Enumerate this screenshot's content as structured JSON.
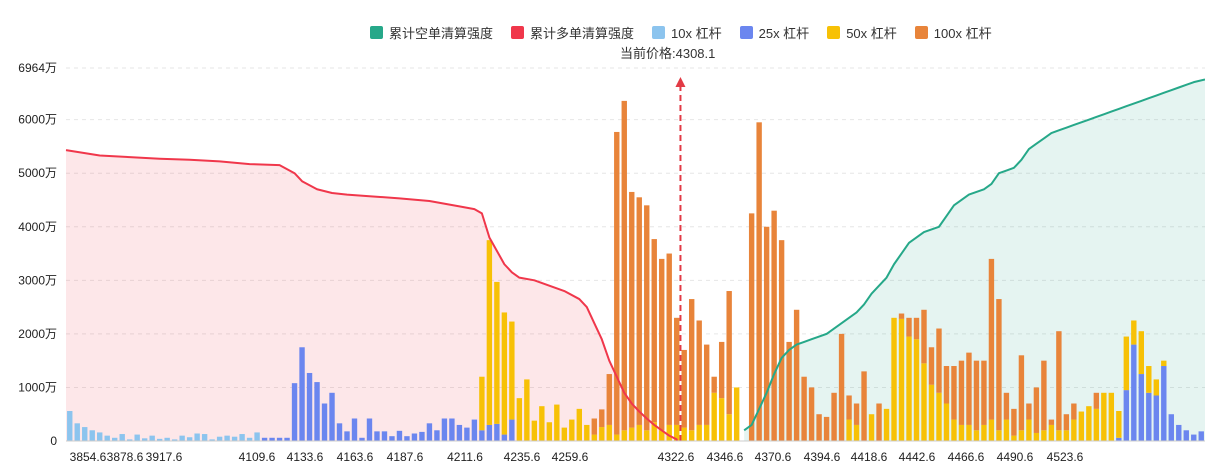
{
  "legend": {
    "items": [
      {
        "label": "累计空单清算强度",
        "color": "#26a889",
        "icon": "square"
      },
      {
        "label": "累计多单清算强度",
        "color": "#f0374b",
        "icon": "square"
      },
      {
        "label": "10x 杠杆",
        "color": "#8cc4ee",
        "icon": "square"
      },
      {
        "label": "25x 杠杆",
        "color": "#6b86ef",
        "icon": "square"
      },
      {
        "label": "50x 杠杆",
        "color": "#f7c106",
        "icon": "square"
      },
      {
        "label": "100x 杠杆",
        "color": "#e8843a",
        "icon": "square"
      }
    ]
  },
  "current_price": {
    "label": "当前价格:4308.1",
    "value": 4308.1
  },
  "chart_data": {
    "type": "bar",
    "title": "",
    "xlabel": "",
    "ylabel": "",
    "ylim": [
      0,
      6964
    ],
    "y_unit": "万",
    "y_ticks": [
      "0",
      "1000万",
      "2000万",
      "3000万",
      "4000万",
      "5000万",
      "6000万",
      "6964万"
    ],
    "y_tick_values": [
      0,
      1000,
      2000,
      3000,
      4000,
      5000,
      6000,
      6964
    ],
    "x_ticks": [
      "3854.6",
      "3878.6",
      "3917.6",
      "4109.6",
      "4133.6",
      "4163.6",
      "4187.6",
      "4211.6",
      "4235.6",
      "4259.6",
      "4322.6",
      "4346.6",
      "4370.6",
      "4394.6",
      "4418.6",
      "4442.6",
      "4466.6",
      "4490.6",
      "4523.6"
    ],
    "grid": true,
    "legend_position": "top",
    "bar_slots": 152,
    "current_price_index": 81,
    "colors": {
      "10x": "#8cc4ee",
      "25x": "#6b86ef",
      "50x": "#f7c106",
      "100x": "#e8843a",
      "short": "#26a889",
      "long": "#f0374b"
    },
    "bars": [
      {
        "i": 0,
        "l10": 560
      },
      {
        "i": 1,
        "l10": 330
      },
      {
        "i": 2,
        "l10": 260
      },
      {
        "i": 3,
        "l10": 200
      },
      {
        "i": 4,
        "l10": 160
      },
      {
        "i": 5,
        "l10": 100
      },
      {
        "i": 6,
        "l10": 60
      },
      {
        "i": 7,
        "l10": 130
      },
      {
        "i": 8,
        "l10": 30
      },
      {
        "i": 9,
        "l10": 120
      },
      {
        "i": 10,
        "l10": 50
      },
      {
        "i": 11,
        "l10": 100
      },
      {
        "i": 12,
        "l10": 40
      },
      {
        "i": 13,
        "l10": 60
      },
      {
        "i": 14,
        "l10": 30
      },
      {
        "i": 15,
        "l10": 100
      },
      {
        "i": 16,
        "l10": 70
      },
      {
        "i": 17,
        "l10": 140
      },
      {
        "i": 18,
        "l10": 130
      },
      {
        "i": 19,
        "l10": 30
      },
      {
        "i": 20,
        "l10": 80
      },
      {
        "i": 21,
        "l10": 100
      },
      {
        "i": 22,
        "l10": 80
      },
      {
        "i": 23,
        "l10": 130
      },
      {
        "i": 24,
        "l10": 60
      },
      {
        "i": 25,
        "l10": 160
      },
      {
        "i": 26,
        "l25": 60
      },
      {
        "i": 27,
        "l25": 60
      },
      {
        "i": 28,
        "l25": 60
      },
      {
        "i": 29,
        "l25": 60
      },
      {
        "i": 30,
        "l25": 1080
      },
      {
        "i": 31,
        "l25": 1750
      },
      {
        "i": 32,
        "l25": 1270
      },
      {
        "i": 33,
        "l25": 1100
      },
      {
        "i": 34,
        "l25": 700
      },
      {
        "i": 35,
        "l25": 900
      },
      {
        "i": 36,
        "l25": 330
      },
      {
        "i": 37,
        "l25": 180
      },
      {
        "i": 38,
        "l25": 420
      },
      {
        "i": 39,
        "l25": 60
      },
      {
        "i": 40,
        "l25": 420
      },
      {
        "i": 41,
        "l25": 180
      },
      {
        "i": 42,
        "l25": 180
      },
      {
        "i": 43,
        "l25": 90
      },
      {
        "i": 44,
        "l25": 190
      },
      {
        "i": 45,
        "l25": 90
      },
      {
        "i": 46,
        "l25": 140
      },
      {
        "i": 47,
        "l25": 170
      },
      {
        "i": 48,
        "l25": 330
      },
      {
        "i": 49,
        "l25": 200
      },
      {
        "i": 50,
        "l25": 420
      },
      {
        "i": 51,
        "l25": 420
      },
      {
        "i": 52,
        "l25": 300
      },
      {
        "i": 53,
        "l25": 250
      },
      {
        "i": 54,
        "l25": 400
      },
      {
        "i": 55,
        "l25": 200,
        "l50": 1000
      },
      {
        "i": 56,
        "l25": 300,
        "l50": 3450
      },
      {
        "i": 57,
        "l25": 320,
        "l50": 2650
      },
      {
        "i": 58,
        "l25": 120,
        "l50": 2280
      },
      {
        "i": 59,
        "l25": 400,
        "l50": 1830
      },
      {
        "i": 60,
        "l50": 800
      },
      {
        "i": 61,
        "l50": 1150
      },
      {
        "i": 62,
        "l50": 380
      },
      {
        "i": 63,
        "l50": 650
      },
      {
        "i": 64,
        "l50": 350
      },
      {
        "i": 65,
        "l50": 680
      },
      {
        "i": 66,
        "l50": 250
      },
      {
        "i": 67,
        "l50": 400
      },
      {
        "i": 68,
        "l50": 600
      },
      {
        "i": 69,
        "l50": 300
      },
      {
        "i": 70,
        "l50": 120,
        "l100": 300
      },
      {
        "i": 71,
        "l50": 260,
        "l100": 330
      },
      {
        "i": 72,
        "l50": 300,
        "l100": 950
      },
      {
        "i": 73,
        "l50": 120,
        "l100": 5650
      },
      {
        "i": 74,
        "l50": 200,
        "l100": 6150
      },
      {
        "i": 75,
        "l50": 250,
        "l100": 4400
      },
      {
        "i": 76,
        "l50": 300,
        "l100": 4250
      },
      {
        "i": 77,
        "l50": 200,
        "l100": 4200
      },
      {
        "i": 78,
        "l50": 350,
        "l100": 3420
      },
      {
        "i": 79,
        "l50": 200,
        "l100": 3200
      },
      {
        "i": 80,
        "l50": 300,
        "l100": 3200
      },
      {
        "i": 81,
        "l50": 300,
        "l100": 2000
      },
      {
        "i": 82,
        "l50": 250,
        "l100": 1450
      },
      {
        "i": 83,
        "l50": 200,
        "l100": 2450
      },
      {
        "i": 84,
        "l50": 300,
        "l100": 1950
      },
      {
        "i": 85,
        "l50": 300,
        "l100": 1500
      },
      {
        "i": 86,
        "l50": 900,
        "l100": 300
      },
      {
        "i": 87,
        "l50": 800,
        "l100": 1050
      },
      {
        "i": 88,
        "l50": 500,
        "l100": 2300
      },
      {
        "i": 89,
        "l50": 1000
      },
      {
        "i": 91,
        "l100": 4250
      },
      {
        "i": 92,
        "l100": 5950
      },
      {
        "i": 93,
        "l100": 4000
      },
      {
        "i": 94,
        "l100": 4300
      },
      {
        "i": 95,
        "l100": 3750
      },
      {
        "i": 96,
        "l100": 1850
      },
      {
        "i": 97,
        "l100": 2450
      },
      {
        "i": 98,
        "l100": 1200
      },
      {
        "i": 99,
        "l100": 1000
      },
      {
        "i": 100,
        "l100": 500
      },
      {
        "i": 101,
        "l100": 450
      },
      {
        "i": 102,
        "l100": 900
      },
      {
        "i": 103,
        "l100": 2000
      },
      {
        "i": 104,
        "l50": 400,
        "l100": 450
      },
      {
        "i": 105,
        "l50": 300,
        "l100": 400
      },
      {
        "i": 106,
        "l100": 1300
      },
      {
        "i": 107,
        "l50": 500
      },
      {
        "i": 108,
        "l100": 700
      },
      {
        "i": 109,
        "l50": 600
      },
      {
        "i": 110,
        "l50": 2300
      },
      {
        "i": 111,
        "l50": 2280,
        "l100": 100
      },
      {
        "i": 112,
        "l50": 1950,
        "l100": 350
      },
      {
        "i": 113,
        "l50": 1900,
        "l100": 400
      },
      {
        "i": 114,
        "l50": 1450,
        "l100": 1000
      },
      {
        "i": 115,
        "l50": 1050,
        "l100": 700
      },
      {
        "i": 116,
        "l50": 900,
        "l100": 1200
      },
      {
        "i": 117,
        "l50": 700,
        "l100": 700
      },
      {
        "i": 118,
        "l50": 400,
        "l100": 1000
      },
      {
        "i": 119,
        "l50": 300,
        "l100": 1200
      },
      {
        "i": 120,
        "l50": 300,
        "l100": 1350
      },
      {
        "i": 121,
        "l50": 200,
        "l100": 1300
      },
      {
        "i": 122,
        "l50": 300,
        "l100": 1200
      },
      {
        "i": 123,
        "l50": 400,
        "l100": 3000
      },
      {
        "i": 124,
        "l50": 200,
        "l100": 2450
      },
      {
        "i": 125,
        "l50": 400,
        "l100": 500
      },
      {
        "i": 126,
        "l50": 100,
        "l100": 500
      },
      {
        "i": 127,
        "l50": 200,
        "l100": 1400
      },
      {
        "i": 128,
        "l50": 400,
        "l100": 300
      },
      {
        "i": 129,
        "l50": 150,
        "l100": 850
      },
      {
        "i": 130,
        "l50": 200,
        "l100": 1300
      },
      {
        "i": 131,
        "l50": 300,
        "l100": 100
      },
      {
        "i": 132,
        "l50": 200,
        "l100": 1850
      },
      {
        "i": 133,
        "l50": 200,
        "l100": 300
      },
      {
        "i": 134,
        "l50": 400,
        "l100": 300
      },
      {
        "i": 135,
        "l50": 550
      },
      {
        "i": 136,
        "l50": 650
      },
      {
        "i": 137,
        "l50": 600,
        "l100": 300
      },
      {
        "i": 138,
        "l50": 900
      },
      {
        "i": 139,
        "l50": 900
      },
      {
        "i": 140,
        "l25": 60,
        "l50": 500
      },
      {
        "i": 141,
        "l25": 950,
        "l50": 1000
      },
      {
        "i": 142,
        "l25": 1800,
        "l50": 450
      },
      {
        "i": 143,
        "l25": 1250,
        "l50": 800
      },
      {
        "i": 144,
        "l25": 900,
        "l50": 500
      },
      {
        "i": 145,
        "l25": 850,
        "l50": 300
      },
      {
        "i": 146,
        "l25": 1400,
        "l50": 100
      },
      {
        "i": 147,
        "l25": 500
      },
      {
        "i": 148,
        "l25": 300
      },
      {
        "i": 149,
        "l25": 200
      },
      {
        "i": 150,
        "l25": 120
      },
      {
        "i": 151,
        "l25": 180
      }
    ],
    "short_cumulative": [
      [
        90,
        200
      ],
      [
        91,
        300
      ],
      [
        92,
        600
      ],
      [
        93,
        900
      ],
      [
        94,
        1250
      ],
      [
        95,
        1550
      ],
      [
        96,
        1700
      ],
      [
        97,
        1800
      ],
      [
        98,
        1850
      ],
      [
        99,
        1900
      ],
      [
        100,
        1950
      ],
      [
        101,
        2000
      ],
      [
        102,
        2100
      ],
      [
        103,
        2200
      ],
      [
        104,
        2300
      ],
      [
        105,
        2400
      ],
      [
        106,
        2550
      ],
      [
        107,
        2750
      ],
      [
        108,
        2900
      ],
      [
        109,
        3050
      ],
      [
        110,
        3300
      ],
      [
        111,
        3500
      ],
      [
        112,
        3700
      ],
      [
        113,
        3800
      ],
      [
        114,
        3900
      ],
      [
        115,
        3950
      ],
      [
        116,
        4000
      ],
      [
        117,
        4200
      ],
      [
        118,
        4400
      ],
      [
        119,
        4500
      ],
      [
        120,
        4600
      ],
      [
        121,
        4650
      ],
      [
        122,
        4700
      ],
      [
        123,
        4800
      ],
      [
        124,
        5000
      ],
      [
        125,
        5050
      ],
      [
        126,
        5100
      ],
      [
        127,
        5250
      ],
      [
        128,
        5450
      ],
      [
        129,
        5550
      ],
      [
        130,
        5650
      ],
      [
        131,
        5750
      ],
      [
        132,
        5800
      ],
      [
        133,
        5850
      ],
      [
        134,
        5900
      ],
      [
        135,
        5950
      ],
      [
        136,
        6000
      ],
      [
        137,
        6050
      ],
      [
        138,
        6100
      ],
      [
        139,
        6150
      ],
      [
        140,
        6200
      ],
      [
        141,
        6250
      ],
      [
        142,
        6300
      ],
      [
        143,
        6350
      ],
      [
        144,
        6400
      ],
      [
        145,
        6450
      ],
      [
        146,
        6500
      ],
      [
        147,
        6550
      ],
      [
        148,
        6600
      ],
      [
        149,
        6650
      ],
      [
        150,
        6700
      ],
      [
        151,
        6750
      ]
    ],
    "long_cumulative": [
      [
        0,
        5430
      ],
      [
        4,
        5330
      ],
      [
        8,
        5300
      ],
      [
        12,
        5270
      ],
      [
        16,
        5250
      ],
      [
        20,
        5220
      ],
      [
        24,
        5170
      ],
      [
        28,
        5150
      ],
      [
        30,
        5000
      ],
      [
        31,
        4850
      ],
      [
        33,
        4700
      ],
      [
        35,
        4630
      ],
      [
        37,
        4600
      ],
      [
        40,
        4570
      ],
      [
        44,
        4530
      ],
      [
        48,
        4480
      ],
      [
        52,
        4380
      ],
      [
        54,
        4330
      ],
      [
        55,
        4250
      ],
      [
        56,
        3800
      ],
      [
        57,
        3550
      ],
      [
        58,
        3300
      ],
      [
        59,
        3150
      ],
      [
        60,
        3050
      ],
      [
        62,
        3000
      ],
      [
        64,
        2900
      ],
      [
        66,
        2800
      ],
      [
        68,
        2650
      ],
      [
        69,
        2500
      ],
      [
        70,
        2200
      ],
      [
        71,
        1900
      ],
      [
        72,
        1500
      ],
      [
        73,
        1200
      ],
      [
        74,
        900
      ],
      [
        75,
        700
      ],
      [
        76,
        550
      ],
      [
        77,
        420
      ],
      [
        78,
        300
      ],
      [
        79,
        200
      ],
      [
        80,
        100
      ],
      [
        81,
        30
      ],
      [
        81,
        0
      ]
    ]
  }
}
